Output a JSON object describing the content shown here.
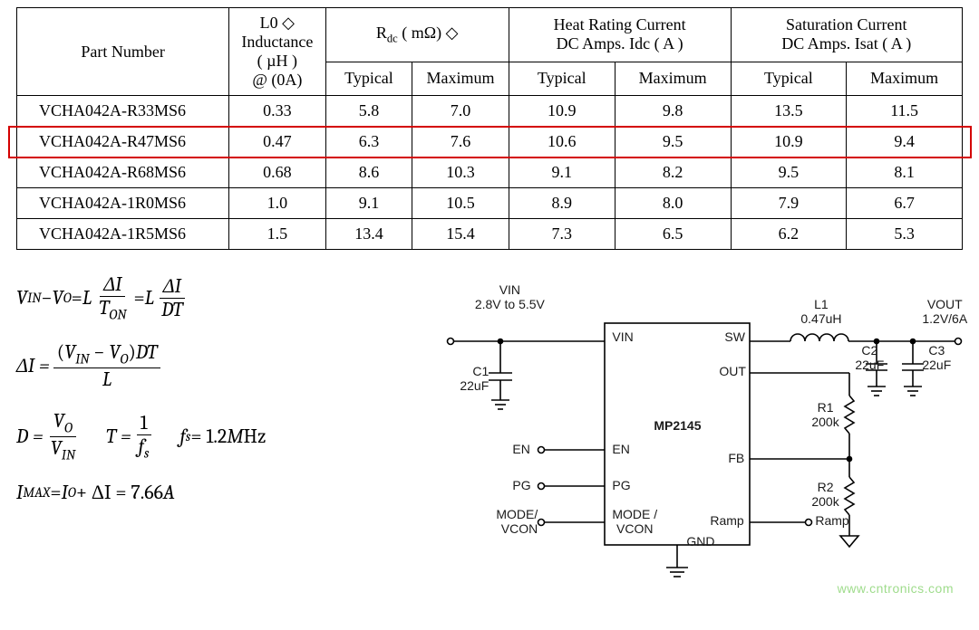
{
  "table": {
    "header": {
      "part_number": "Part Number",
      "l0_top": "L0 ◇",
      "l0_mid": "Inductance",
      "l0_unit": "( µH )",
      "l0_cond": "@ (0A)",
      "rdc": "R",
      "rdc_sub": "dc",
      "rdc_unit": "( mΩ)",
      "diamond": "◇",
      "heat_top": "Heat Rating Current",
      "heat_mid": "DC Amps. Idc ( A )",
      "sat_top": "Saturation Current",
      "sat_mid": "DC Amps. Isat ( A )",
      "typical": "Typical",
      "maximum": "Maximum"
    },
    "col_widths": [
      "22%",
      "10%",
      "9%",
      "10%",
      "11%",
      "12%",
      "12%",
      "12%"
    ],
    "rows": [
      {
        "pn": "VCHA042A-R33MS6",
        "l0": "0.33",
        "rdc_typ": "5.8",
        "rdc_max": "7.0",
        "idc_typ": "10.9",
        "idc_max": "9.8",
        "isat_typ": "13.5",
        "isat_max": "11.5"
      },
      {
        "pn": "VCHA042A-R47MS6",
        "l0": "0.47",
        "rdc_typ": "6.3",
        "rdc_max": "7.6",
        "idc_typ": "10.6",
        "idc_max": "9.5",
        "isat_typ": "10.9",
        "isat_max": "9.4"
      },
      {
        "pn": "VCHA042A-R68MS6",
        "l0": "0.68",
        "rdc_typ": "8.6",
        "rdc_max": "10.3",
        "idc_typ": "9.1",
        "idc_max": "8.2",
        "isat_typ": "9.5",
        "isat_max": "8.1"
      },
      {
        "pn": "VCHA042A-1R0MS6",
        "l0": "1.0",
        "rdc_typ": "9.1",
        "rdc_max": "10.5",
        "idc_typ": "8.9",
        "idc_max": "8.0",
        "isat_typ": "7.9",
        "isat_max": "6.7"
      },
      {
        "pn": "VCHA042A-1R5MS6",
        "l0": "1.5",
        "rdc_typ": "13.4",
        "rdc_max": "15.4",
        "idc_typ": "7.3",
        "idc_max": "6.5",
        "isat_typ": "6.2",
        "isat_max": "5.3"
      }
    ],
    "highlight_row_index": 1,
    "highlight_color": "#d40000"
  },
  "formulas": {
    "eq1_lhs_v": "V",
    "eq1_lhs_in": "IN",
    "eq1_lhs_minus": " − ",
    "eq1_lhs_vo_v": "V",
    "eq1_lhs_vo_o": "O",
    "eq1_eq": " = ",
    "eq1_L": "L",
    "eq1_frac1_num": "ΔI",
    "eq1_frac1_den_t": "T",
    "eq1_frac1_den_on": "ON",
    "eq1_frac2_num": "ΔI",
    "eq1_frac2_den": "DT",
    "eq2_lhs": "ΔI = ",
    "eq2_num_open": "(",
    "eq2_num_v1": "V",
    "eq2_num_in": "IN",
    "eq2_num_minus": " − ",
    "eq2_num_v2": "V",
    "eq2_num_o": "O",
    "eq2_num_close": ")",
    "eq2_num_dt": "DT",
    "eq2_den": "L",
    "eq3_D": "D = ",
    "eq3_f1_num_v": "V",
    "eq3_f1_num_o": "O",
    "eq3_f1_den_v": "V",
    "eq3_f1_den_in": "IN",
    "eq3_T": "T = ",
    "eq3_f2_num": "1",
    "eq3_f2_den_f": "f",
    "eq3_f2_den_s": "s",
    "eq3_fs": "f",
    "eq3_fs_s": "s",
    "eq3_fs_val": " = 1.2",
    "eq3_fs_unit_M": "M",
    "eq3_fs_unit_Hz": "Hz",
    "eq4": "I",
    "eq4_max": "MAX",
    "eq4_mid": " = ",
    "eq4_io": "I",
    "eq4_o": "O",
    "eq4_plus": " + ΔI = 7.66",
    "eq4_a": "A"
  },
  "schematic": {
    "chip": "MP2145",
    "vin_title": "VIN",
    "vin_range": "2.8V to  5.5V",
    "c1": "C1",
    "c1_val": "22uF",
    "en": "EN",
    "pg": "PG",
    "mode": "MODE/",
    "vcon": "VCON",
    "pin_vin": "VIN",
    "pin_en": "EN",
    "pin_pg": "PG",
    "pin_mode": "MODE /",
    "pin_vcon": "VCON",
    "pin_sw": "SW",
    "pin_out": "OUT",
    "pin_fb": "FB",
    "pin_gnd": "GND",
    "pin_ramp": "Ramp",
    "l1": "L1",
    "l1_val": "0.47uH",
    "vout": "VOUT",
    "vout_val": "1.2V/6A",
    "c2": "C2",
    "c2_val": "22uF",
    "c3": "C3",
    "c3_val": "22uF",
    "r1": "R1",
    "r1_val": "200k",
    "r2": "R2",
    "r2_val": "200k",
    "ramp": "Ramp"
  },
  "watermark": "www.cntronics.com"
}
